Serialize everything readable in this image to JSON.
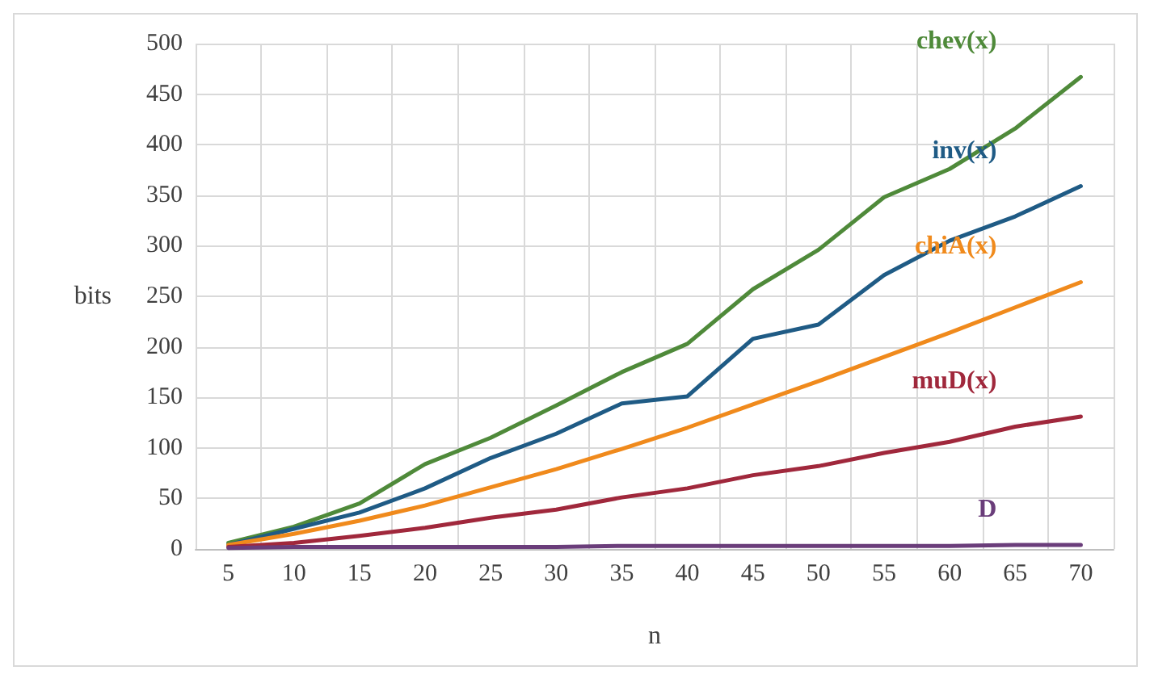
{
  "chart_data": {
    "type": "line",
    "xlabel": "n",
    "ylabel": "bits",
    "categories": [
      "5",
      "10",
      "15",
      "20",
      "25",
      "30",
      "35",
      "40",
      "45",
      "50",
      "55",
      "60",
      "65",
      "70"
    ],
    "series": [
      {
        "name": "chev(x)",
        "color": "#4f8a3a",
        "values": [
          6,
          22,
          45,
          84,
          110,
          142,
          175,
          203,
          257,
          296,
          348,
          376,
          416,
          467
        ]
      },
      {
        "name": "inv(x)",
        "color": "#1f5b85",
        "values": [
          4,
          20,
          36,
          60,
          90,
          114,
          144,
          151,
          208,
          222,
          271,
          305,
          329,
          359
        ]
      },
      {
        "name": "chiA(x)",
        "color": "#f08a1c",
        "values": [
          4,
          15,
          28,
          43,
          61,
          79,
          99,
          120,
          143,
          166,
          190,
          214,
          239,
          264
        ]
      },
      {
        "name": "muD(x)",
        "color": "#a0283c",
        "values": [
          2,
          6,
          13,
          21,
          31,
          39,
          51,
          60,
          73,
          82,
          95,
          106,
          121,
          131
        ]
      },
      {
        "name": "D",
        "color": "#6a3d7a",
        "values": [
          1,
          2,
          2,
          2,
          2,
          2,
          3,
          3,
          3,
          3,
          3,
          3,
          4,
          4
        ]
      }
    ],
    "ylim": [
      0,
      500
    ],
    "yticks": [
      0,
      50,
      100,
      150,
      200,
      250,
      300,
      350,
      400,
      450,
      500
    ],
    "grid": true,
    "legend": false,
    "marker": "none",
    "line_style": "solid"
  }
}
